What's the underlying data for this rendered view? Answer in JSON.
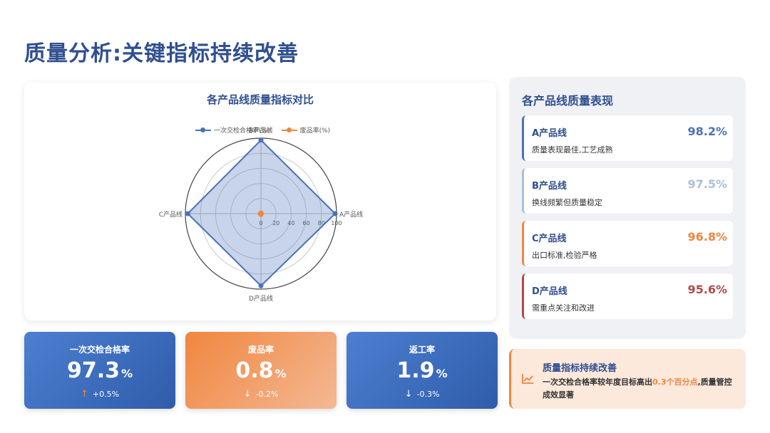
{
  "page": {
    "title": "质量分析:关键指标持续改善"
  },
  "chart_data": {
    "type": "radar",
    "title": "各产品线质量指标对比",
    "axes": [
      "A产品线",
      "B产品线",
      "C产品线",
      "D产品线"
    ],
    "radial_ticks": [
      "0",
      "20",
      "40",
      "60",
      "80",
      "100"
    ],
    "range": [
      0,
      100
    ],
    "series": [
      {
        "name": "一次交检合格率(%)",
        "color": "#4a72b8",
        "values": [
          98.2,
          97.5,
          96.8,
          95.6
        ]
      },
      {
        "name": "废品率(%)",
        "color": "#f0863f",
        "values": [
          0.6,
          0.8,
          0.9,
          1.1
        ]
      }
    ]
  },
  "kpis": [
    {
      "label": "一次交检合格率",
      "value": "97.3",
      "unit": "%",
      "arrow": "↑",
      "change": "+0.5%"
    },
    {
      "label": "废品率",
      "value": "0.8",
      "unit": "%",
      "arrow": "↓",
      "change": "-0.2%"
    },
    {
      "label": "返工率",
      "value": "1.9",
      "unit": "%",
      "arrow": "↓",
      "change": "-0.3%"
    }
  ],
  "panel": {
    "title": "各产品线质量表现",
    "lines": [
      {
        "name": "A产品线",
        "value": "98.2%",
        "desc": "质量表现最佳,工艺成熟",
        "color": "#4a72b8"
      },
      {
        "name": "B产品线",
        "value": "97.5%",
        "desc": "换线频繁但质量稳定",
        "color": "#a9bedf"
      },
      {
        "name": "C产品线",
        "value": "96.8%",
        "desc": "出口标准,检验严格",
        "color": "#f0863f"
      },
      {
        "name": "D产品线",
        "value": "95.6%",
        "desc": "需重点关注和改进",
        "color": "#b04a4a"
      }
    ]
  },
  "summary": {
    "title": "质量指标持续改善",
    "text_before": "一次交检合格率较年度目标高出",
    "highlight": "0.3个百分点",
    "text_after": ",质量管控成效显著"
  },
  "colors": {
    "title": "#2f4f8f",
    "accent_orange": "#f0863f",
    "accent_blue": "#4a72b8"
  },
  "icons": {
    "summary": "trend-chart-icon",
    "up": "arrow-up-icon",
    "down": "arrow-down-icon"
  }
}
